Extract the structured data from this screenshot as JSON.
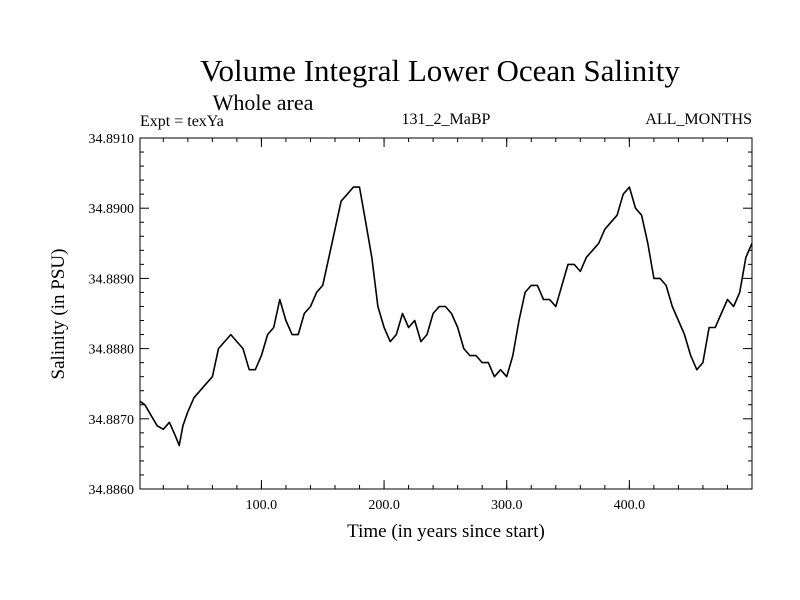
{
  "chart_data": {
    "type": "line",
    "title": "Volume Integral Lower Ocean Salinity",
    "subtitle": "Whole area",
    "left_label": "Expt = texYa",
    "center_label": "131_2_MaBP",
    "right_label": "ALL_MONTHS",
    "xlabel": "Time (in years since start)",
    "ylabel": "Salinity (in PSU)",
    "xlim": [
      1,
      500
    ],
    "ylim": [
      34.886,
      34.891
    ],
    "xticks": [
      100,
      200,
      300,
      400
    ],
    "xtick_labels": [
      "100.0",
      "200.0",
      "300.0",
      "400.0"
    ],
    "yticks": [
      34.886,
      34.887,
      34.888,
      34.889,
      34.89,
      34.891
    ],
    "ytick_labels": [
      "34.8860",
      "34.8870",
      "34.8880",
      "34.8890",
      "34.8900",
      "34.8910"
    ],
    "grid": false,
    "line_color": "#000000",
    "series": [
      {
        "x": [
          1,
          5,
          10,
          15,
          20,
          25,
          30,
          33,
          36,
          40,
          45,
          50,
          55,
          60,
          65,
          70,
          75,
          80,
          85,
          90,
          95,
          100,
          105,
          110,
          115,
          120,
          125,
          130,
          135,
          140,
          145,
          150,
          155,
          160,
          165,
          170,
          175,
          180,
          185,
          190,
          195,
          200,
          205,
          210,
          215,
          220,
          225,
          230,
          235,
          240,
          245,
          250,
          255,
          260,
          265,
          270,
          275,
          280,
          285,
          290,
          295,
          300,
          305,
          310,
          315,
          320,
          325,
          330,
          335,
          340,
          345,
          350,
          355,
          360,
          365,
          370,
          375,
          380,
          385,
          390,
          395,
          400,
          405,
          410,
          415,
          420,
          425,
          430,
          435,
          440,
          445,
          450,
          455,
          460,
          465,
          470,
          475,
          480,
          485,
          490,
          495,
          500
        ],
        "values": [
          34.88725,
          34.8872,
          34.88705,
          34.8869,
          34.88685,
          34.88695,
          34.88675,
          34.88662,
          34.8869,
          34.8871,
          34.8873,
          34.8874,
          34.8875,
          34.8876,
          34.888,
          34.8881,
          34.8882,
          34.8881,
          34.888,
          34.8877,
          34.8877,
          34.8879,
          34.8882,
          34.8883,
          34.8887,
          34.8884,
          34.8882,
          34.8882,
          34.8885,
          34.8886,
          34.8888,
          34.8889,
          34.8893,
          34.8897,
          34.8901,
          34.8902,
          34.8903,
          34.8903,
          34.8898,
          34.8893,
          34.8886,
          34.8883,
          34.8881,
          34.8882,
          34.8885,
          34.8883,
          34.8884,
          34.8881,
          34.8882,
          34.8885,
          34.8886,
          34.8886,
          34.8885,
          34.8883,
          34.888,
          34.8879,
          34.8879,
          34.8878,
          34.8878,
          34.8876,
          34.8877,
          34.8876,
          34.8879,
          34.8884,
          34.8888,
          34.8889,
          34.8889,
          34.8887,
          34.8887,
          34.8886,
          34.8889,
          34.8892,
          34.8892,
          34.8891,
          34.8893,
          34.8894,
          34.8895,
          34.8897,
          34.8898,
          34.8899,
          34.8902,
          34.8903,
          34.89,
          34.8899,
          34.8895,
          34.889,
          34.889,
          34.8889,
          34.8886,
          34.8884,
          34.8882,
          34.8879,
          34.8877,
          34.8878,
          34.8883,
          34.8883,
          34.8885,
          34.8887,
          34.8886,
          34.8888,
          34.8893,
          34.8895
        ]
      }
    ]
  }
}
